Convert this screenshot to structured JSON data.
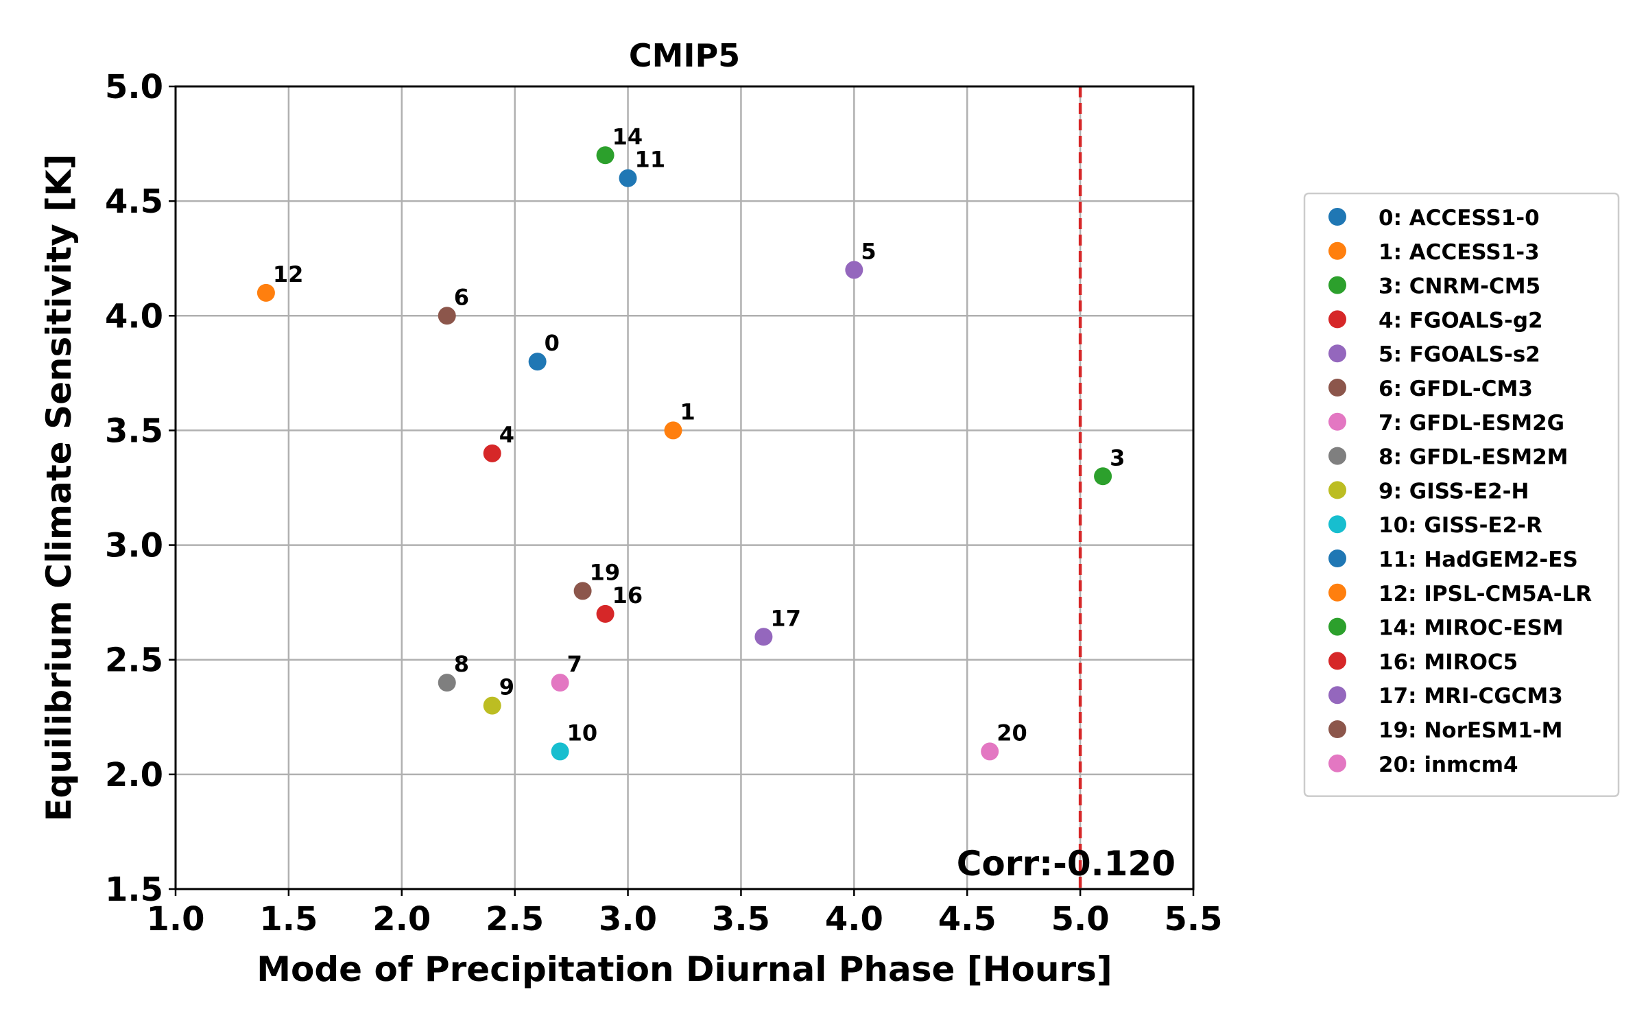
{
  "chart_data": {
    "type": "scatter",
    "title": "CMIP5",
    "xlabel": "Mode of Precipitation Diurnal Phase [Hours]",
    "ylabel": "Equilibrium Climate Sensitivity [K]",
    "xlim": [
      1.0,
      5.5
    ],
    "ylim": [
      1.5,
      5.0
    ],
    "xticks": [
      "1.0",
      "1.5",
      "2.0",
      "2.5",
      "3.0",
      "3.5",
      "4.0",
      "4.5",
      "5.0",
      "5.5"
    ],
    "yticks": [
      "1.5",
      "2.0",
      "2.5",
      "3.0",
      "3.5",
      "4.0",
      "4.5",
      "5.0"
    ],
    "grid": true,
    "legend_position": "outside-right",
    "reference_line": {
      "x": 5.0,
      "color": "#d62728",
      "style": "dashed"
    },
    "annotation": "Corr:-0.120",
    "points": [
      {
        "id": "0",
        "legend": "0: ACCESS1-0",
        "x": 2.6,
        "y": 3.8,
        "color": "#1f77b4"
      },
      {
        "id": "1",
        "legend": "1: ACCESS1-3",
        "x": 3.2,
        "y": 3.5,
        "color": "#ff7f0e"
      },
      {
        "id": "3",
        "legend": "3: CNRM-CM5",
        "x": 5.1,
        "y": 3.3,
        "color": "#2ca02c"
      },
      {
        "id": "4",
        "legend": "4: FGOALS-g2",
        "x": 2.4,
        "y": 3.4,
        "color": "#d62728"
      },
      {
        "id": "5",
        "legend": "5: FGOALS-s2",
        "x": 4.0,
        "y": 4.2,
        "color": "#9467bd"
      },
      {
        "id": "6",
        "legend": "6: GFDL-CM3",
        "x": 2.2,
        "y": 4.0,
        "color": "#8c564b"
      },
      {
        "id": "7",
        "legend": "7: GFDL-ESM2G",
        "x": 2.7,
        "y": 2.4,
        "color": "#e377c2"
      },
      {
        "id": "8",
        "legend": "8: GFDL-ESM2M",
        "x": 2.2,
        "y": 2.4,
        "color": "#7f7f7f"
      },
      {
        "id": "9",
        "legend": "9: GISS-E2-H",
        "x": 2.4,
        "y": 2.3,
        "color": "#bcbd22"
      },
      {
        "id": "10",
        "legend": "10: GISS-E2-R",
        "x": 2.7,
        "y": 2.1,
        "color": "#17becf"
      },
      {
        "id": "11",
        "legend": "11: HadGEM2-ES",
        "x": 3.0,
        "y": 4.6,
        "color": "#1f77b4"
      },
      {
        "id": "12",
        "legend": "12: IPSL-CM5A-LR",
        "x": 1.4,
        "y": 4.1,
        "color": "#ff7f0e"
      },
      {
        "id": "14",
        "legend": "14: MIROC-ESM",
        "x": 2.9,
        "y": 4.7,
        "color": "#2ca02c"
      },
      {
        "id": "16",
        "legend": "16: MIROC5",
        "x": 2.9,
        "y": 2.7,
        "color": "#d62728"
      },
      {
        "id": "17",
        "legend": "17: MRI-CGCM3",
        "x": 3.6,
        "y": 2.6,
        "color": "#9467bd"
      },
      {
        "id": "19",
        "legend": "19: NorESM1-M",
        "x": 2.8,
        "y": 2.8,
        "color": "#8c564b"
      },
      {
        "id": "20",
        "legend": "20: inmcm4",
        "x": 4.6,
        "y": 2.1,
        "color": "#e377c2"
      }
    ]
  }
}
